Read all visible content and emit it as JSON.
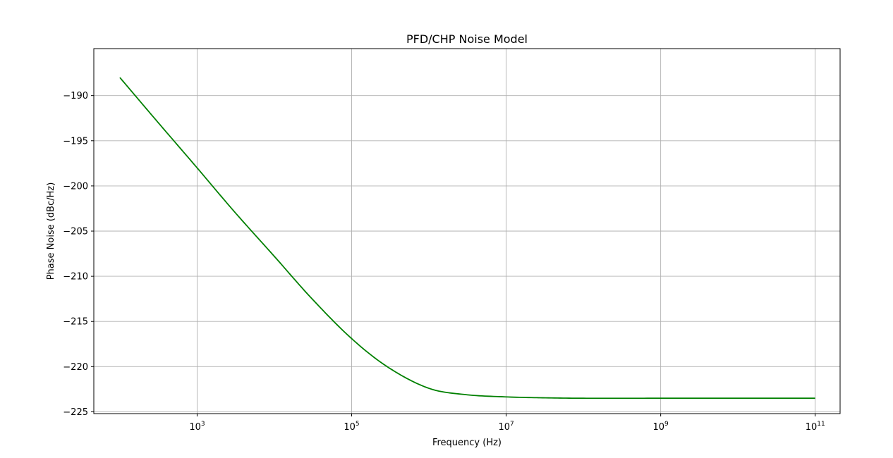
{
  "chart_data": {
    "type": "line",
    "title": "PFD/CHP Noise Model",
    "xlabel": "Frequency (Hz)",
    "ylabel": "Phase Noise (dBc/Hz)",
    "x_scale": "log",
    "xlim": [
      46,
      210000000000
    ],
    "ylim": [
      -225.2,
      -184.8
    ],
    "grid": true,
    "legend": "none",
    "x_ticks": [
      {
        "value": 1000,
        "base": "10",
        "exp": "3"
      },
      {
        "value": 100000,
        "base": "10",
        "exp": "5"
      },
      {
        "value": 10000000,
        "base": "10",
        "exp": "7"
      },
      {
        "value": 1000000000,
        "base": "10",
        "exp": "9"
      },
      {
        "value": 100000000000,
        "base": "10",
        "exp": "11"
      }
    ],
    "y_ticks": [
      {
        "value": -190,
        "label": "−190"
      },
      {
        "value": -195,
        "label": "−195"
      },
      {
        "value": -200,
        "label": "−200"
      },
      {
        "value": -205,
        "label": "−205"
      },
      {
        "value": -210,
        "label": "−210"
      },
      {
        "value": -215,
        "label": "−215"
      },
      {
        "value": -220,
        "label": "−220"
      },
      {
        "value": -225,
        "label": "−225"
      }
    ],
    "series": [
      {
        "color": "#008000",
        "x": [
          100,
          300,
          1000,
          3000,
          10000,
          30000,
          100000,
          300000,
          1000000,
          3000000,
          10000000,
          30000000,
          100000000,
          1000000000,
          10000000000,
          100000000000
        ],
        "y": [
          -188.0,
          -192.8,
          -198.0,
          -202.8,
          -207.8,
          -212.4,
          -216.9,
          -220.1,
          -222.4,
          -223.1,
          -223.35,
          -223.45,
          -223.5,
          -223.5,
          -223.5,
          -223.5
        ]
      }
    ]
  }
}
